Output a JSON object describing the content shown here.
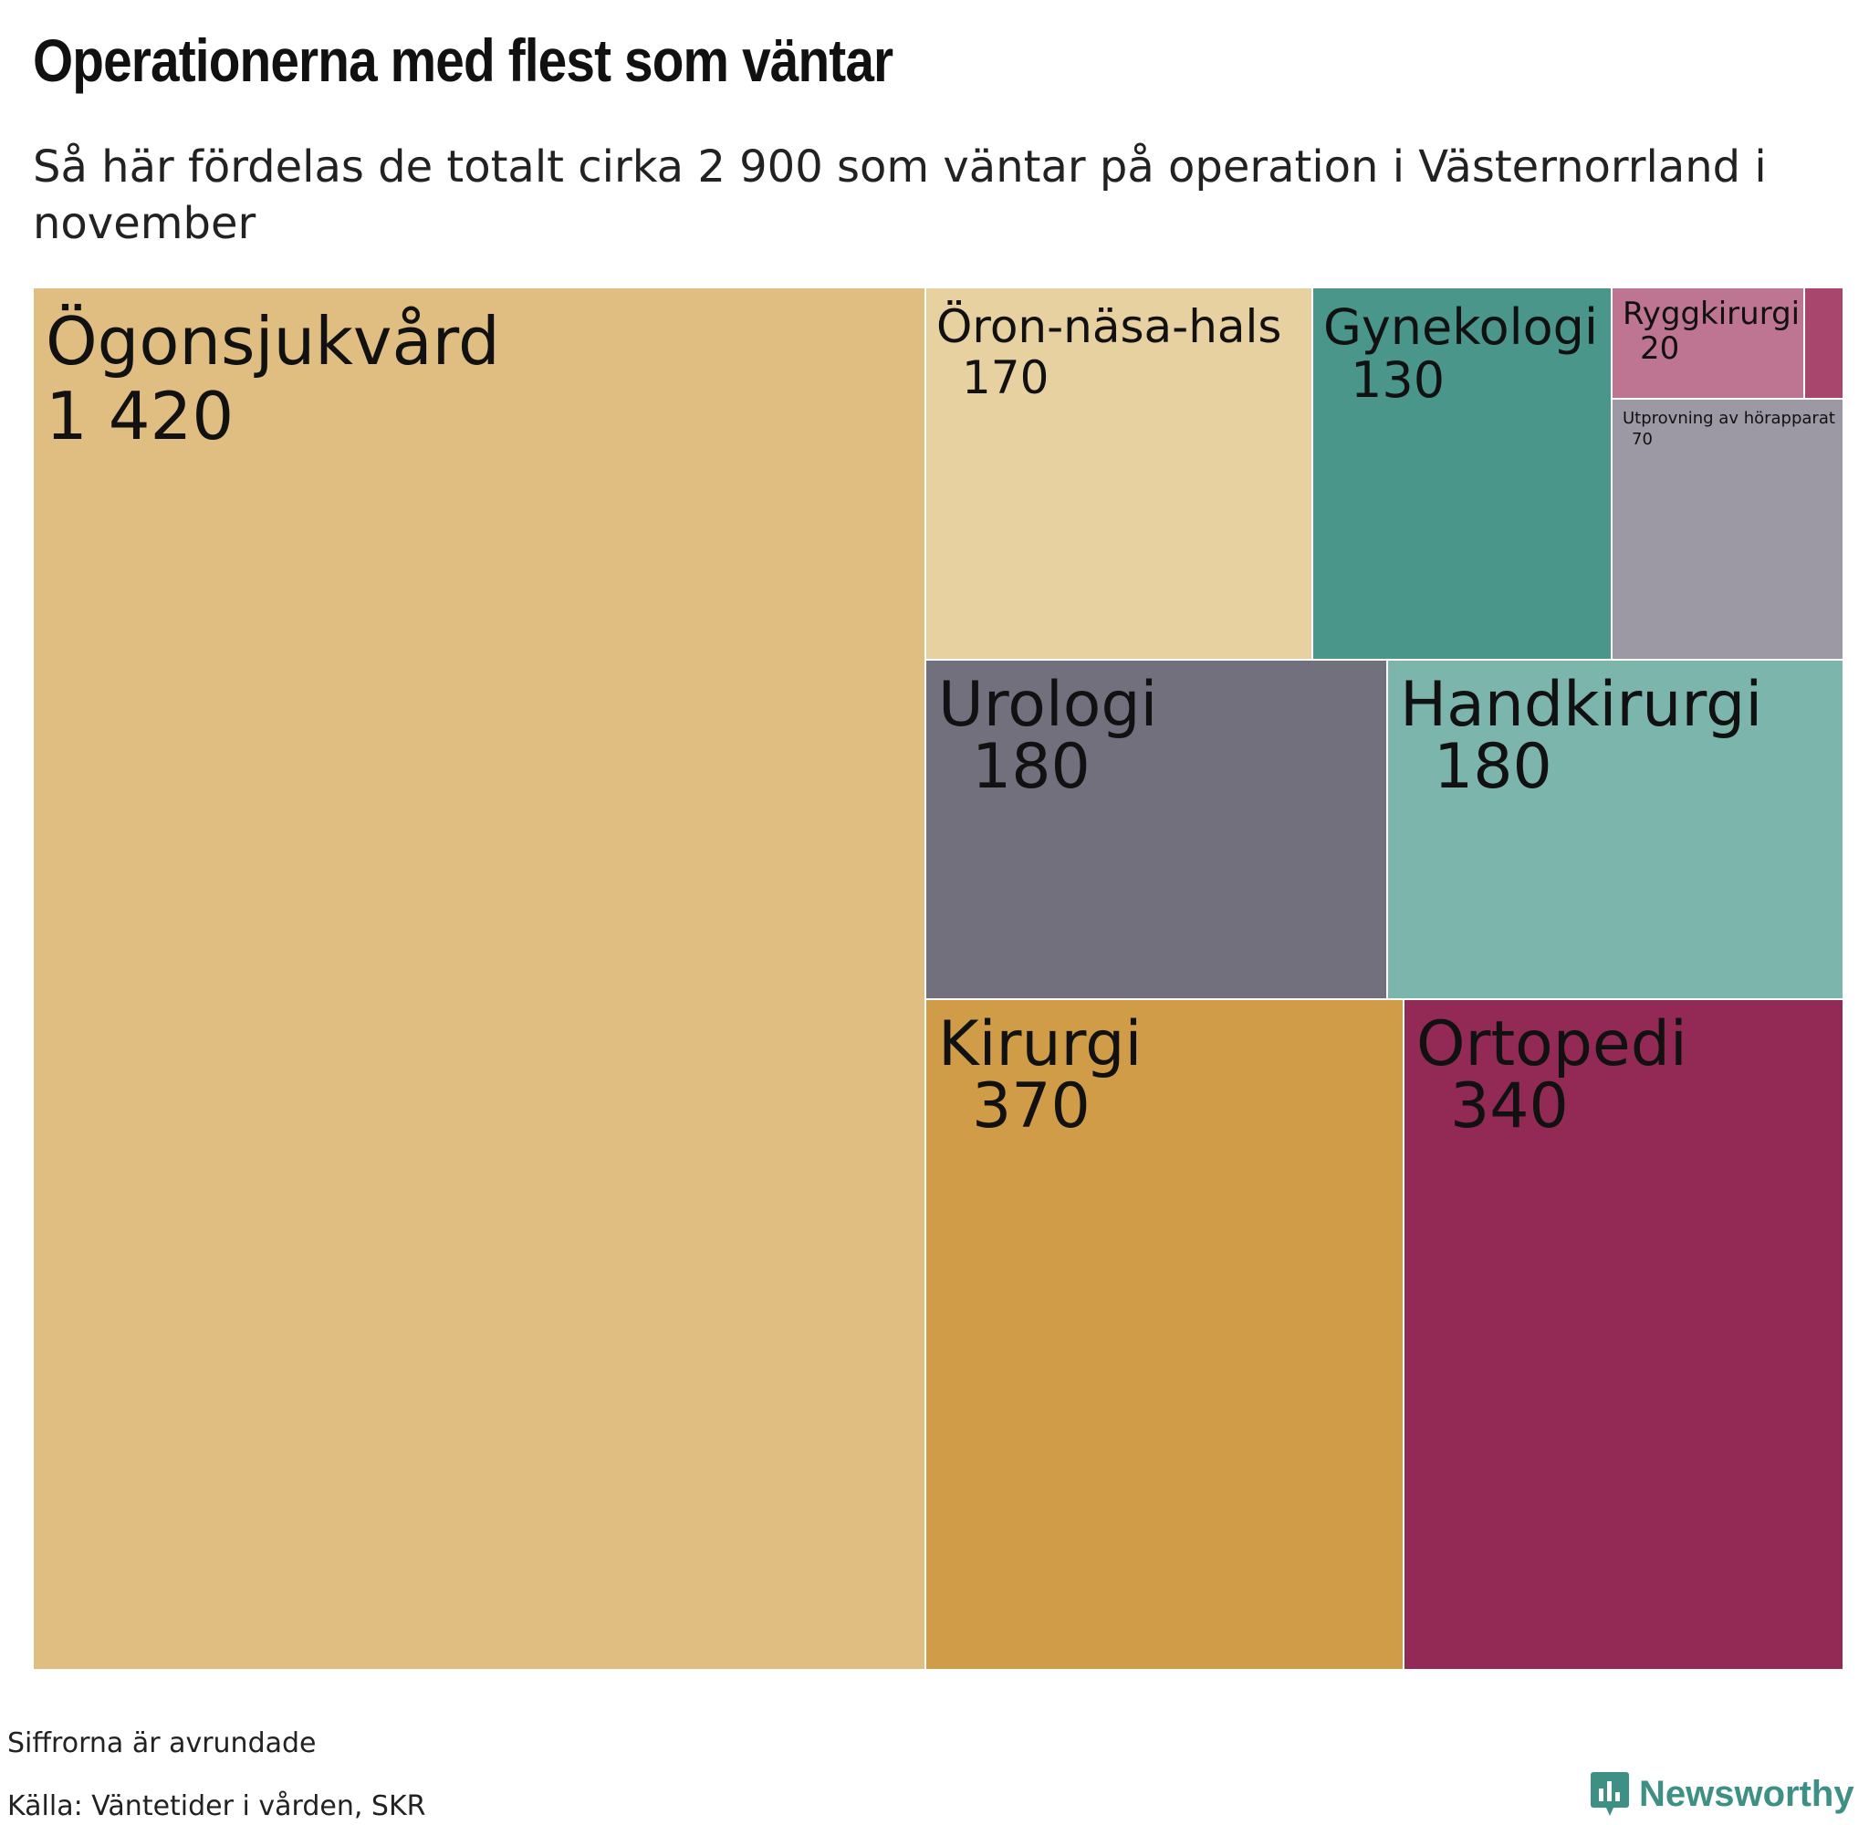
{
  "header": {
    "title": "Operationerna med flest som väntar",
    "subtitle": "Så här fördelas de totalt cirka 2 900 som väntar på operation i Västernorrland i november"
  },
  "chart_data": {
    "type": "treemap",
    "title": "Operationerna med flest som väntar",
    "subtitle": "Så här fördelas de totalt cirka 2 900 som väntar på operation i Västernorrland i november",
    "items": [
      {
        "name": "Ögonsjukvård",
        "value": 1420,
        "label": "1 420",
        "color": "#e0bd80"
      },
      {
        "name": "Öron-näsa-hals",
        "value": 170,
        "label": "170",
        "color": "#e8d1a0"
      },
      {
        "name": "Gynekologi",
        "value": 130,
        "label": "130",
        "color": "#4b968a"
      },
      {
        "name": "Ryggkirurgi",
        "value": 20,
        "label": "20",
        "color": "#be7592"
      },
      {
        "name": "",
        "value": 10,
        "label": "",
        "color": "#a9466e"
      },
      {
        "name": "Utprovning av hörapparat",
        "value": 70,
        "label": "70",
        "color": "#9c99a5"
      },
      {
        "name": "Urologi",
        "value": 180,
        "label": "180",
        "color": "#73707d"
      },
      {
        "name": "Handkirurgi",
        "value": 180,
        "label": "180",
        "color": "#7cb5ac"
      },
      {
        "name": "Kirurgi",
        "value": 370,
        "label": "370",
        "color": "#d09c47"
      },
      {
        "name": "Ortopedi",
        "value": 340,
        "label": "340",
        "color": "#922a55"
      }
    ]
  },
  "footer": {
    "note": "Siffrorna är avrundade",
    "source": "Källa: Väntetider i vården, SKR",
    "brand": "Newsworthy",
    "brand_icon": "newsworthy-logo-icon",
    "brand_color": "#3e8f84"
  }
}
